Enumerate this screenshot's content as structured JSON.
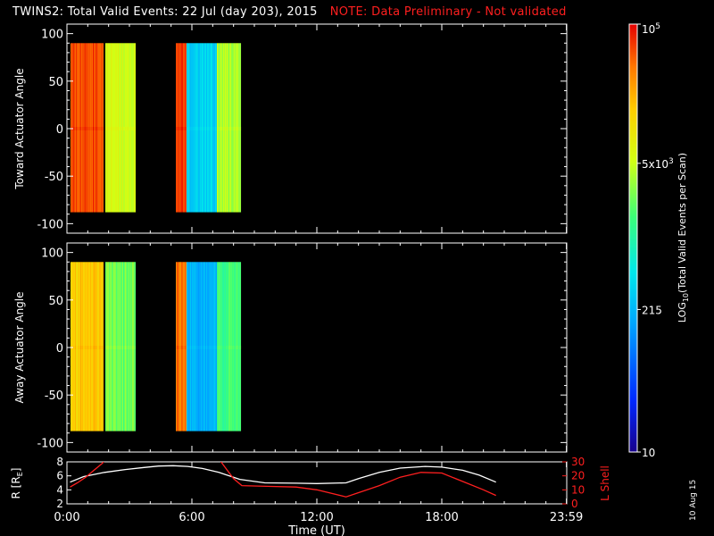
{
  "header": {
    "title": "TWINS2: Total Valid Events: 22 Jul (day 203), 2015",
    "note": "NOTE: Data Preliminary - Not validated"
  },
  "footer": {
    "generated_date": "10 Aug 15"
  },
  "colors": {
    "background": "#000000",
    "note": "#ff1f1f",
    "r_line": "#ffffff",
    "lshell_line": "#ff1f1f"
  },
  "chart_data": [
    {
      "type": "heatmap",
      "name": "toward",
      "ylabel": "Toward Actuator Angle",
      "ylim": [
        -110,
        110
      ],
      "yticks": [
        100,
        50,
        0,
        -50,
        -100
      ],
      "data_yrange": [
        -88,
        90
      ],
      "xlim": [
        0,
        24
      ],
      "blocks": [
        {
          "start": 0.17,
          "end": 1.74,
          "center": 4.75,
          "jitter": 0.12
        },
        {
          "start": 1.84,
          "end": 3.3,
          "center": 3.75,
          "jitter": 0.15
        },
        {
          "start": 5.22,
          "end": 5.75,
          "center": 4.8,
          "jitter": 0.12
        },
        {
          "start": 5.75,
          "end": 7.2,
          "center": 2.55,
          "jitter": 0.18
        },
        {
          "start": 7.2,
          "end": 8.35,
          "center": 3.6,
          "jitter": 0.15
        }
      ]
    },
    {
      "type": "heatmap",
      "name": "away",
      "ylabel": "Away Actuator Angle",
      "ylim": [
        -110,
        110
      ],
      "yticks": [
        100,
        50,
        0,
        -50,
        -100
      ],
      "data_yrange": [
        -88,
        90
      ],
      "xlim": [
        0,
        24
      ],
      "blocks": [
        {
          "start": 0.17,
          "end": 1.74,
          "center": 4.2,
          "jitter": 0.15
        },
        {
          "start": 1.84,
          "end": 3.3,
          "center": 3.4,
          "jitter": 0.15
        },
        {
          "start": 5.22,
          "end": 5.75,
          "center": 4.6,
          "jitter": 0.12
        },
        {
          "start": 5.75,
          "end": 7.2,
          "center": 2.3,
          "jitter": 0.15
        },
        {
          "start": 7.2,
          "end": 8.35,
          "center": 3.2,
          "jitter": 0.15
        }
      ]
    },
    {
      "type": "colorbar",
      "label": "LOG10(Total Valid Events per Scan)",
      "scale": "log",
      "range": [
        10,
        100000
      ],
      "tick_labels": [
        "10",
        "215",
        "5x10^3",
        "10^5"
      ],
      "tick_values": [
        10,
        215,
        5000,
        100000
      ]
    },
    {
      "type": "line",
      "name": "ephemeris",
      "xlabel": "Time (UT)",
      "xlim": [
        0,
        24
      ],
      "xticks": [
        "0:00",
        "6:00",
        "12:00",
        "18:00",
        "23:59"
      ],
      "xtick_values": [
        0,
        6,
        12,
        18,
        23.983
      ],
      "left_axis": {
        "label": "R [RE]",
        "ylim": [
          2,
          8
        ],
        "yticks": [
          2,
          4,
          6,
          8
        ]
      },
      "right_axis": {
        "label": "L Shell",
        "ylim": [
          0,
          30
        ],
        "yticks": [
          0,
          10,
          20,
          30
        ]
      },
      "series": [
        {
          "axis": "left",
          "x": [
            0.15,
            0.8,
            1.8,
            2.8,
            3.7,
            4.4,
            5.1,
            5.8,
            6.5,
            7.3,
            8.3,
            9.5,
            11.0,
            12.0,
            13.4,
            14.0,
            15.0,
            16.0,
            17.2,
            18.0,
            19.0,
            19.8,
            20.6
          ],
          "y": [
            5.1,
            5.9,
            6.5,
            6.9,
            7.2,
            7.4,
            7.45,
            7.35,
            7.05,
            6.5,
            5.5,
            5.0,
            4.95,
            4.9,
            5.0,
            5.6,
            6.5,
            7.1,
            7.35,
            7.25,
            6.8,
            6.1,
            5.1
          ]
        },
        {
          "axis": "right",
          "x": [
            0.15,
            0.5,
            0.9,
            1.3,
            1.7,
            1.8,
            7.35,
            7.6,
            8.0,
            8.4,
            9.6,
            11.0,
            12.0,
            13.4,
            14.0,
            15.0,
            16.0,
            17.0,
            18.0,
            19.0,
            20.0,
            20.6
          ],
          "y": [
            12,
            15,
            19,
            24,
            29,
            31,
            31,
            26,
            18,
            13,
            12.5,
            12,
            10,
            5,
            8,
            13,
            19,
            22.5,
            22,
            16,
            10,
            6
          ]
        }
      ]
    }
  ]
}
